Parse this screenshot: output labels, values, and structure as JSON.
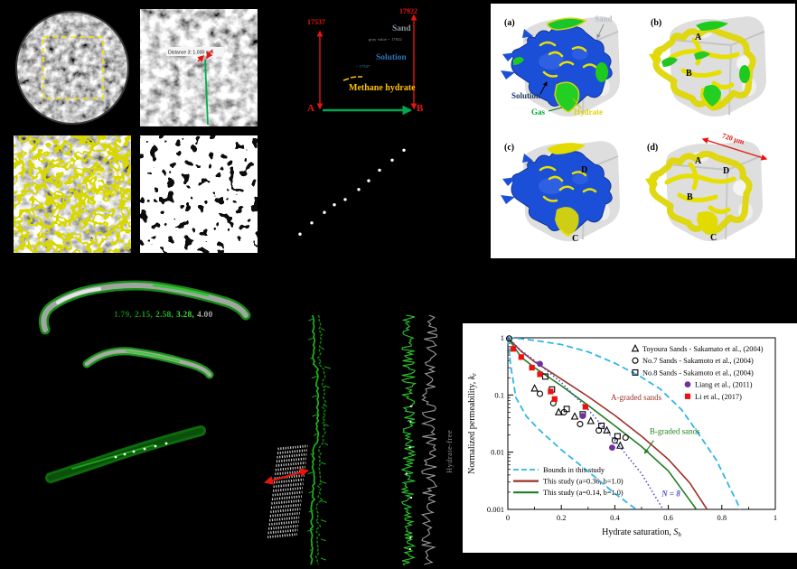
{
  "panels": {
    "ct_zoom": {
      "distance_label": "Distance 3: 1.030 mm"
    },
    "profile": {
      "value_left": "17537",
      "value_right": "17922",
      "endpoint_a": "A",
      "endpoint_b": "B",
      "sand_label": "Sand",
      "sand_note": "gray value ~ 17922",
      "solution_label": "Solution",
      "solution_note": "~ 17537",
      "hydrate_label": "Methane hydrate"
    },
    "renders": {
      "a_label": "(a)",
      "b_label": "(b)",
      "c_label": "(c)",
      "d_label": "(d)",
      "sand_label": "Sand",
      "solution_label": "Solution",
      "gas_label": "Gas",
      "hydrate_label": "Hydrate",
      "scale_label": "720 μm",
      "marker_a": "A",
      "marker_b": "B",
      "marker_c": "C",
      "marker_d": "D"
    },
    "tubes": {
      "values": [
        "1.79,",
        "2.15,",
        "2.58,",
        "3.28,",
        "4.00"
      ],
      "value_colors": [
        "#117a11",
        "#1b9a1b",
        "#27bc27",
        "#3eda3e",
        "#a8a8a8"
      ]
    },
    "column": {
      "hydrate_free_label": "Hydrate-free"
    },
    "dots_panel": {
      "points_rel": [
        [
          0.16,
          0.84
        ],
        [
          0.225,
          0.745
        ],
        [
          0.295,
          0.655
        ],
        [
          0.35,
          0.59
        ],
        [
          0.41,
          0.545
        ],
        [
          0.485,
          0.46
        ],
        [
          0.54,
          0.385
        ],
        [
          0.6,
          0.295
        ],
        [
          0.67,
          0.21
        ],
        [
          0.735,
          0.125
        ]
      ]
    }
  },
  "chart_data": {
    "type": "line",
    "xlabel": {
      "text": "Hydrate saturation, ",
      "var": "S",
      "sub": "h"
    },
    "ylabel": {
      "text": "Normalized permeability, ",
      "var": "k",
      "sub": "r"
    },
    "xlim": [
      0,
      1
    ],
    "ylim": [
      0.001,
      1
    ],
    "yscale": "log",
    "grid": false,
    "xticks": [
      "0",
      "0.2",
      "0.4",
      "0.6",
      "0.8",
      "1"
    ],
    "xtick_values": [
      0,
      0.2,
      0.4,
      0.6,
      0.8,
      1
    ],
    "yticks": [
      "1",
      "0.1",
      "0.01",
      "0.001"
    ],
    "ytick_values": [
      1,
      0.1,
      0.01,
      0.001
    ],
    "series": [
      {
        "name": "Bounds in this study (upper)",
        "style": "dashed",
        "color": "#2eb6e8",
        "points": [
          [
            0,
            1
          ],
          [
            0.05,
            0.96
          ],
          [
            0.1,
            0.9
          ],
          [
            0.2,
            0.76
          ],
          [
            0.3,
            0.57
          ],
          [
            0.4,
            0.36
          ],
          [
            0.5,
            0.205
          ],
          [
            0.57,
            0.127
          ],
          [
            0.65,
            0.055
          ],
          [
            0.71,
            0.022
          ],
          [
            0.78,
            0.0072
          ],
          [
            0.87,
            0.001
          ]
        ]
      },
      {
        "name": "Bounds in this study (lower)",
        "style": "dashed",
        "color": "#2eb6e8",
        "points": [
          [
            0,
            1
          ],
          [
            0.01,
            0.34
          ],
          [
            0.03,
            0.09
          ],
          [
            0.07,
            0.042
          ],
          [
            0.12,
            0.024
          ],
          [
            0.2,
            0.011
          ],
          [
            0.3,
            0.0046
          ],
          [
            0.4,
            0.0019
          ],
          [
            0.48,
            0.001
          ]
        ]
      },
      {
        "name": "This study (a=0.36, b=1.0)",
        "style": "solid",
        "color": "#9c3028",
        "points": [
          [
            0,
            1
          ],
          [
            0.05,
            0.58
          ],
          [
            0.1,
            0.38
          ],
          [
            0.15,
            0.27
          ],
          [
            0.2,
            0.19
          ],
          [
            0.3,
            0.094
          ],
          [
            0.4,
            0.044
          ],
          [
            0.5,
            0.019
          ],
          [
            0.6,
            0.0075
          ],
          [
            0.68,
            0.0029
          ],
          [
            0.745,
            0.001
          ]
        ]
      },
      {
        "name": "This study (a=0.14, b=1.0)",
        "style": "solid",
        "color": "#217f21",
        "points": [
          [
            0,
            1
          ],
          [
            0.05,
            0.46
          ],
          [
            0.1,
            0.3
          ],
          [
            0.2,
            0.145
          ],
          [
            0.3,
            0.066
          ],
          [
            0.4,
            0.029
          ],
          [
            0.5,
            0.0125
          ],
          [
            0.6,
            0.0047
          ],
          [
            0.705,
            0.001
          ]
        ]
      },
      {
        "name": "N = 8",
        "style": "dotted",
        "color": "#4d4dd0",
        "points": [
          [
            0,
            1
          ],
          [
            0.05,
            0.6
          ],
          [
            0.1,
            0.4
          ],
          [
            0.2,
            0.165
          ],
          [
            0.3,
            0.056
          ],
          [
            0.4,
            0.016
          ],
          [
            0.5,
            0.0042
          ],
          [
            0.58,
            0.001
          ]
        ]
      }
    ],
    "scatter": [
      {
        "name": "Toyoura Sands - Sakamato et al., (2004)",
        "marker": "triangle-open",
        "color": "#000000",
        "points": [
          [
            0.1,
            0.13
          ],
          [
            0.19,
            0.05
          ],
          [
            0.25,
            0.042
          ],
          [
            0.31,
            0.035
          ],
          [
            0.37,
            0.024
          ],
          [
            0.42,
            0.013
          ]
        ]
      },
      {
        "name": "No.7 Sands - Sakamoto et al., (2004)",
        "marker": "circle-open",
        "color": "#000000",
        "points": [
          [
            0.005,
            0.97
          ],
          [
            0.12,
            0.105
          ],
          [
            0.17,
            0.072
          ],
          [
            0.21,
            0.05
          ],
          [
            0.27,
            0.031
          ],
          [
            0.34,
            0.024
          ],
          [
            0.4,
            0.016
          ],
          [
            0.44,
            0.018
          ]
        ]
      },
      {
        "name": "No.8 Sands - Sakamoto et al., (2004)",
        "marker": "square-open",
        "color": "#000000",
        "points": [
          [
            0.14,
            0.21
          ],
          [
            0.165,
            0.125
          ],
          [
            0.22,
            0.057
          ],
          [
            0.28,
            0.046
          ],
          [
            0.35,
            0.029
          ],
          [
            0.41,
            0.019
          ]
        ]
      },
      {
        "name": "Liang et al., (2011)",
        "marker": "circle-filled",
        "color": "#7030a0",
        "points": [
          [
            0.12,
            0.35
          ],
          [
            0.28,
            0.043
          ],
          [
            0.39,
            0.012
          ]
        ]
      },
      {
        "name": "Li et al., (2017)",
        "marker": "square-filled",
        "color": "#ee1111",
        "points": [
          [
            0.02,
            0.64
          ],
          [
            0.05,
            0.46
          ],
          [
            0.09,
            0.3
          ],
          [
            0.12,
            0.23
          ],
          [
            0.16,
            0.115
          ],
          [
            0.175,
            0.085
          ],
          [
            0.29,
            0.062
          ]
        ]
      }
    ],
    "annotations": [
      {
        "text": "A-graded sands",
        "x": 0.385,
        "y": 0.082,
        "color": "#9c3028"
      },
      {
        "text": "B-graded sands",
        "x": 0.53,
        "y": 0.021,
        "color": "#217f21",
        "arrow": [
          0.545,
          0.016,
          0.512,
          0.0096
        ]
      },
      {
        "text": "N = 8",
        "x": 0.575,
        "y": 0.0017,
        "color": "#4d4dd0",
        "italic": true
      }
    ],
    "legend_markers": {
      "position": "top-right",
      "entries": [
        {
          "marker": "triangle-open",
          "color": "#000000",
          "label": "Toyoura Sands - Sakamato et al., (2004)"
        },
        {
          "marker": "circle-open",
          "color": "#000000",
          "label": "No.7 Sands - Sakamoto et al., (2004)"
        },
        {
          "marker": "square-open",
          "color": "#000000",
          "label": "No.8 Sands - Sakamoto et al., (2004)"
        },
        {
          "marker": "circle-filled",
          "color": "#7030a0",
          "label": "Liang et al., (2011)"
        },
        {
          "marker": "square-filled",
          "color": "#ee1111",
          "label": "Li et al., (2017)"
        }
      ]
    },
    "legend_lines": {
      "position": "bottom-left",
      "entries": [
        {
          "style": "dashed",
          "color": "#2eb6e8",
          "label": "Bounds in this study"
        },
        {
          "style": "solid",
          "color": "#9c3028",
          "label": "This study (a=0.36, b=1.0)"
        },
        {
          "style": "solid",
          "color": "#217f21",
          "label": "This study (a=0.14, b=1.0)"
        }
      ]
    }
  }
}
